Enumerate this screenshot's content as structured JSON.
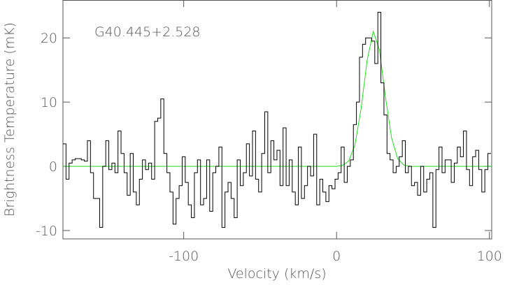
{
  "chart_data": {
    "type": "step",
    "annotation": "G40.445+2.528",
    "xlabel": "Velocity (km/s)",
    "ylabel": "Brightness Temperature (mK)",
    "xlim": [
      -179,
      101.5
    ],
    "ylim": [
      -11.3,
      25.9
    ],
    "xticks": [
      -100,
      0,
      100
    ],
    "yticks": [
      -10,
      0,
      10,
      20
    ],
    "x": [
      -178,
      -176,
      -174,
      -172,
      -170,
      -168,
      -166,
      -164,
      -162,
      -160,
      -158,
      -156,
      -154,
      -152,
      -150,
      -148,
      -146,
      -144,
      -142,
      -140,
      -138,
      -136,
      -134,
      -132,
      -130,
      -128,
      -126,
      -124,
      -122,
      -120,
      -118,
      -116,
      -114,
      -112,
      -110,
      -108,
      -106,
      -104,
      -102,
      -100,
      -98,
      -96,
      -94,
      -92,
      -90,
      -88,
      -86,
      -84,
      -82,
      -80,
      -78,
      -76,
      -74,
      -72,
      -70,
      -68,
      -66,
      -64,
      -62,
      -60,
      -58,
      -56,
      -54,
      -52,
      -50,
      -48,
      -46,
      -44,
      -42,
      -40,
      -38,
      -36,
      -34,
      -32,
      -30,
      -28,
      -26,
      -24,
      -22,
      -20,
      -18,
      -16,
      -14,
      -12,
      -10,
      -8,
      -6,
      -4,
      -2,
      0,
      2,
      4,
      6,
      8,
      10,
      12,
      14,
      16,
      18,
      20,
      22,
      24,
      26,
      28,
      30,
      32,
      34,
      36,
      38,
      40,
      42,
      44,
      46,
      48,
      50,
      52,
      54,
      56,
      58,
      60,
      62,
      64,
      66,
      68,
      70,
      72,
      74,
      76,
      78,
      80,
      82,
      84,
      86,
      88,
      90,
      92,
      94,
      96,
      98,
      100
    ],
    "values": [
      3.5,
      -2,
      0.5,
      1,
      1.2,
      1.2,
      1,
      0.8,
      4,
      -1,
      -5,
      -5,
      -9.5,
      0,
      4,
      -0.5,
      0.5,
      -1,
      5.5,
      2,
      -1,
      -4.5,
      2,
      -4,
      -6,
      -2,
      1,
      -0.5,
      0.5,
      -2,
      7,
      7.5,
      10.5,
      2,
      -1,
      -4,
      -9,
      -5,
      -3,
      1.5,
      -2.5,
      -6,
      -8,
      -1,
      1,
      -6,
      -5,
      1,
      -7,
      -1,
      0,
      3,
      -9.5,
      -4,
      -2.5,
      -5,
      -8,
      1,
      -3,
      -1,
      3.5,
      -1.5,
      5.5,
      -2,
      -4,
      2,
      8.5,
      -1,
      4,
      1,
      2.5,
      -3,
      6,
      -3,
      1,
      -4,
      -6,
      3,
      -5,
      -3,
      0,
      -1.5,
      5,
      -6,
      -2,
      -4,
      -5.5,
      -3,
      -3.5,
      -2,
      -1,
      3,
      -2.5,
      0,
      1,
      6.5,
      10,
      17,
      19,
      20,
      20,
      19.5,
      16,
      24,
      13,
      8,
      2,
      1,
      -1,
      0,
      1.5,
      4,
      -1,
      0,
      -3,
      -2.5,
      -4.5,
      0,
      -4,
      -2,
      -1,
      -9.5,
      -0.5,
      3,
      -1,
      1,
      1,
      -2.5,
      0.5,
      3,
      1.5,
      5.5,
      -0.5,
      -3,
      1.5,
      2.5,
      -0.5,
      -4,
      -0.5,
      2
    ],
    "color": "#000000",
    "fit": {
      "color": "#22dd22",
      "x": [
        -179,
        0,
        4,
        8,
        12,
        16,
        20,
        24,
        28,
        32,
        36,
        40,
        44,
        48,
        101.5
      ],
      "values": [
        0,
        0,
        0.15,
        0.84,
        3.3,
        8.9,
        16.5,
        21,
        18.2,
        10.8,
        4.4,
        1.2,
        0.2,
        0,
        0
      ]
    }
  }
}
